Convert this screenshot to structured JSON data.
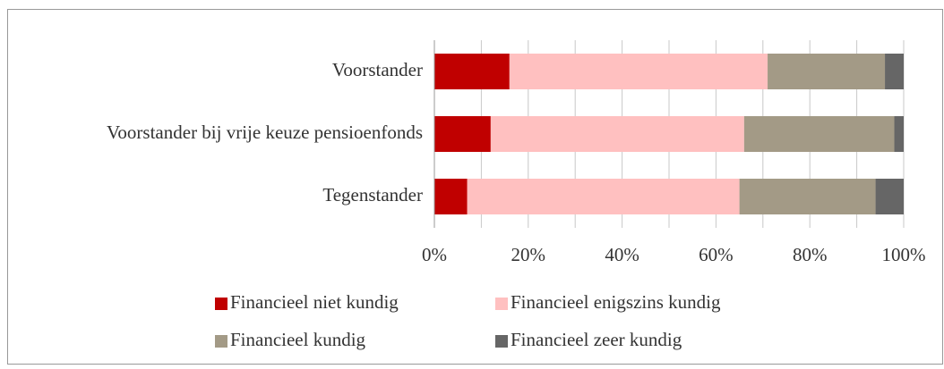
{
  "chart_data": {
    "type": "stacked_barh",
    "categories": [
      "Voorstander",
      "Voorstander bij vrije keuze pensioenfonds",
      "Tegenstander"
    ],
    "series": [
      {
        "name": "Financieel niet kundig",
        "color": "#c00000",
        "values": [
          16,
          12,
          7
        ]
      },
      {
        "name": "Financieel enigszins kundig",
        "color": "#ffc0c0",
        "values": [
          55,
          54,
          58
        ]
      },
      {
        "name": "Financieel kundig",
        "color": "#a39a86",
        "values": [
          25,
          32,
          29
        ]
      },
      {
        "name": "Financieel zeer kundig",
        "color": "#666666",
        "values": [
          4,
          2,
          6
        ]
      }
    ],
    "xlim": [
      0,
      100
    ],
    "xticks": [
      {
        "value": 0,
        "label": "0%"
      },
      {
        "value": 20,
        "label": "20%"
      },
      {
        "value": 40,
        "label": "40%"
      },
      {
        "value": 60,
        "label": "60%"
      },
      {
        "value": 80,
        "label": "80%"
      },
      {
        "value": 100,
        "label": "100%"
      }
    ],
    "xminorticks": [
      10,
      30,
      50,
      70,
      90
    ],
    "grid": true,
    "legend": "bottom"
  }
}
